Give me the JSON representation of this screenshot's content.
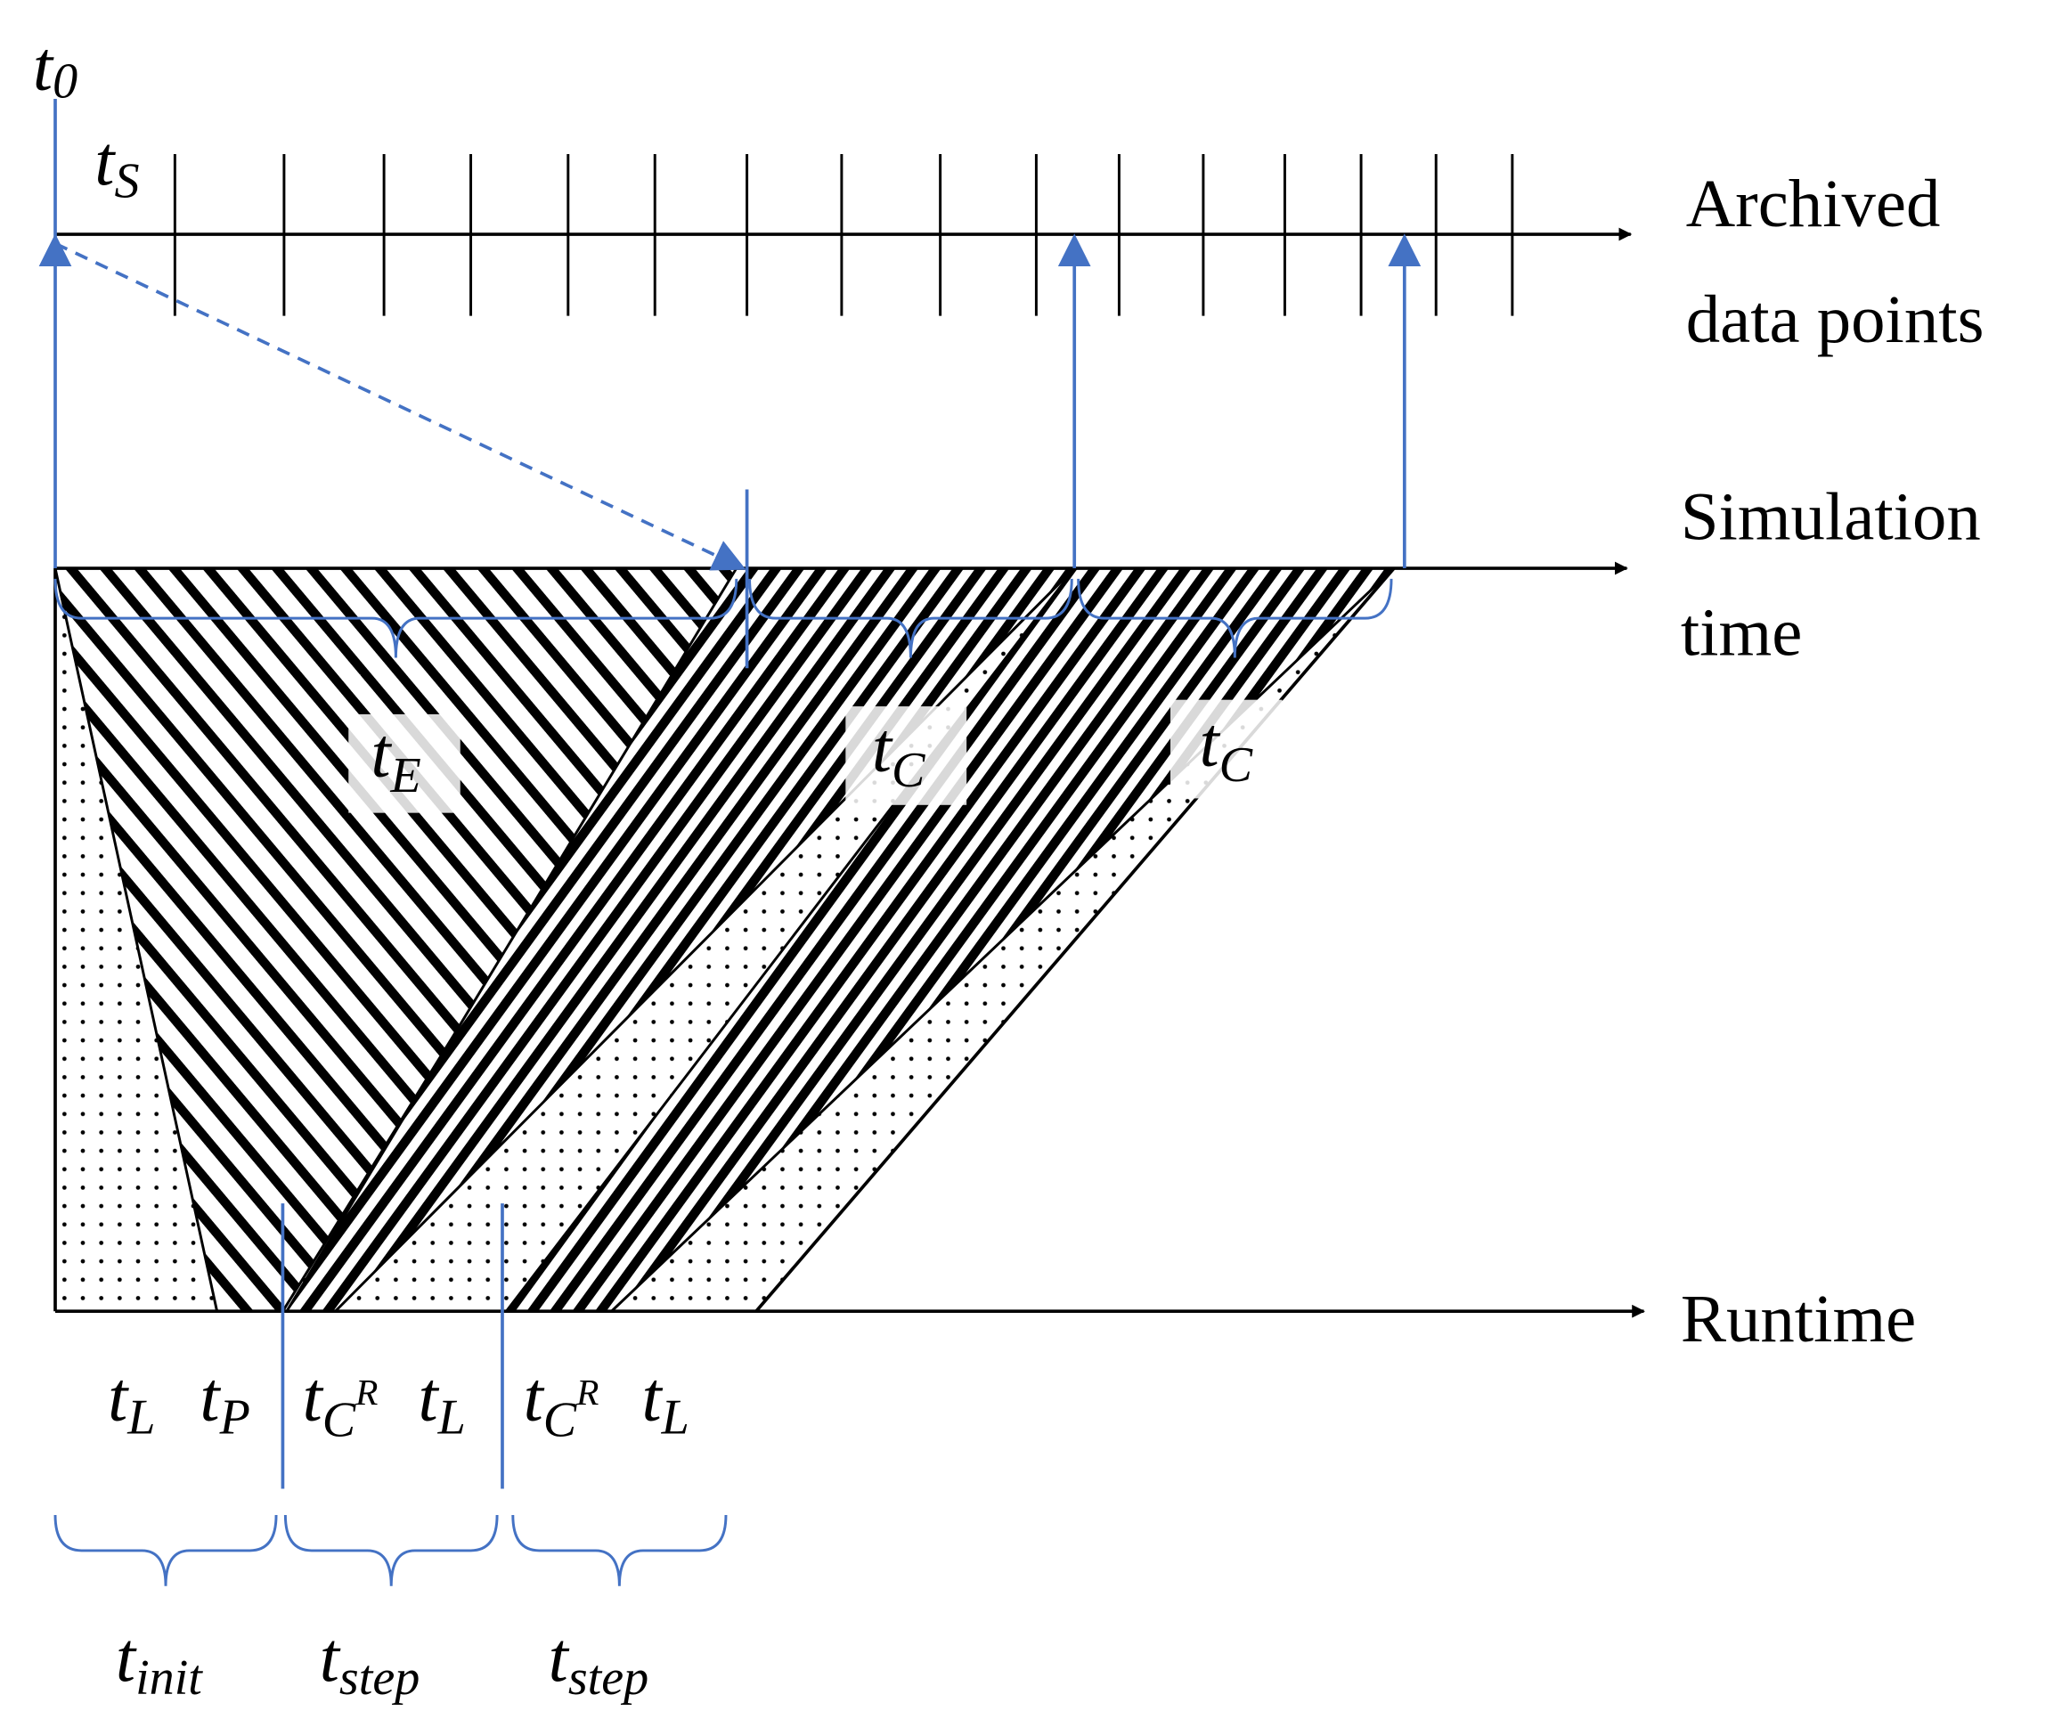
{
  "labels": {
    "t0": {
      "base": "t",
      "sub": "0"
    },
    "tS": {
      "base": "t",
      "sub": "S"
    },
    "tE": {
      "base": "t",
      "sub": "E"
    },
    "tC1": {
      "base": "t",
      "sub": "C"
    },
    "tC2": {
      "base": "t",
      "sub": "C"
    },
    "tL1": {
      "base": "t",
      "sub": "L"
    },
    "tP": {
      "base": "t",
      "sub": "P"
    },
    "tCR1": {
      "base": "t",
      "sub": "C",
      "sup": "R"
    },
    "tL2": {
      "base": "t",
      "sub": "L"
    },
    "tCR2": {
      "base": "t",
      "sub": "C",
      "sup": "R"
    },
    "tL3": {
      "base": "t",
      "sub": "L"
    },
    "tinit": {
      "base": "t",
      "sub": "init"
    },
    "tstep1": {
      "base": "t",
      "sub": "step"
    },
    "tstep2": {
      "base": "t",
      "sub": "step"
    }
  },
  "axes": {
    "archived": [
      "Archived",
      "data points"
    ],
    "simulation": [
      "Simulation",
      "time"
    ],
    "runtime": "Runtime"
  }
}
